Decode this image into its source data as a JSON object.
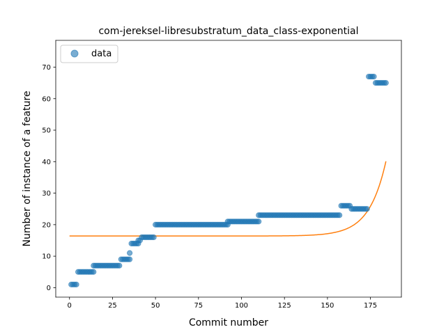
{
  "chart_data": {
    "type": "scatter",
    "title": "com-jereksel-libresubstratum_data_class-exponential",
    "xlabel": "Commit number",
    "ylabel": "Number of instance of a feature",
    "xlim": [
      -8,
      193
    ],
    "ylim": [
      -3,
      78.5
    ],
    "xticks": [
      0,
      25,
      50,
      75,
      100,
      125,
      150,
      175
    ],
    "yticks": [
      0,
      10,
      20,
      30,
      40,
      50,
      60,
      70
    ],
    "xtick_labels": [
      "0",
      "25",
      "50",
      "75",
      "100",
      "125",
      "150",
      "175"
    ],
    "ytick_labels": [
      "0",
      "10",
      "20",
      "30",
      "40",
      "50",
      "60",
      "70"
    ],
    "legend": {
      "position": "top-left",
      "entries": [
        "data"
      ]
    },
    "grid": false,
    "series": [
      {
        "name": "data",
        "kind": "scatter",
        "color": "#1f77b4",
        "segments": [
          {
            "from": 1,
            "to": 4,
            "y": 1
          },
          {
            "from": 5,
            "to": 14,
            "y": 5
          },
          {
            "from": 14,
            "to": 29,
            "y": 7
          },
          {
            "from": 30,
            "to": 35,
            "y": 9
          },
          {
            "from": 35,
            "to": 35,
            "y": 11
          },
          {
            "from": 36,
            "to": 40,
            "y": 14
          },
          {
            "from": 40,
            "to": 41,
            "y": 15
          },
          {
            "from": 42,
            "to": 49,
            "y": 16
          },
          {
            "from": 50,
            "to": 92,
            "y": 20
          },
          {
            "from": 92,
            "to": 110,
            "y": 21
          },
          {
            "from": 110,
            "to": 157,
            "y": 23
          },
          {
            "from": 158,
            "to": 163,
            "y": 26
          },
          {
            "from": 164,
            "to": 173,
            "y": 25
          },
          {
            "from": 174,
            "to": 177,
            "y": 67
          },
          {
            "from": 178,
            "to": 184,
            "y": 65
          }
        ]
      },
      {
        "name": "",
        "kind": "line",
        "color": "#ff7f0e",
        "model": "exponential",
        "a": 16.4,
        "b": 1.615e-07,
        "c": 0.1022,
        "x_range": [
          0,
          184
        ]
      }
    ]
  }
}
